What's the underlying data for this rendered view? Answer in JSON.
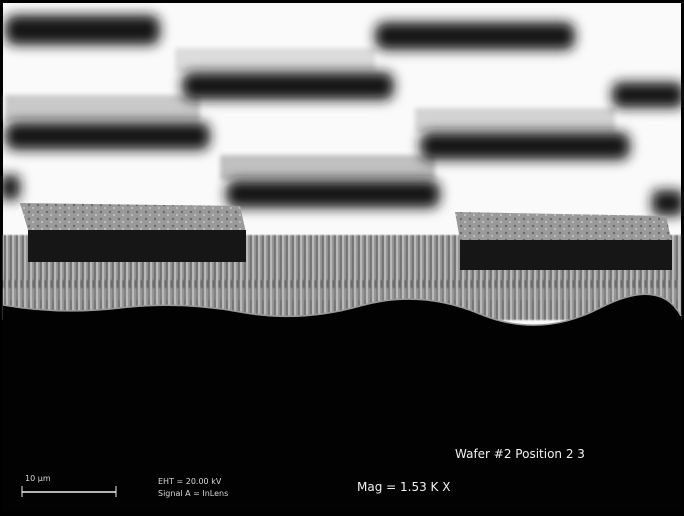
{
  "image": {
    "kind": "SEM micrograph"
  },
  "labels": {
    "sample": "Wafer #2 Position 2 3",
    "magnification": "Mag = 1.53 K X",
    "scale_bar": "10 µm",
    "detector": "EHT = 20.00 kV",
    "signal": "Signal A = InLens"
  }
}
